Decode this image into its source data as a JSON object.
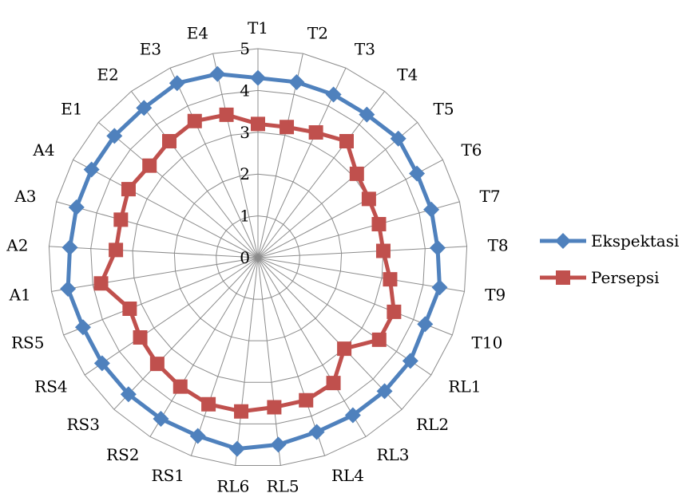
{
  "chart_data": {
    "type": "radar",
    "categories": [
      "T1",
      "T2",
      "T3",
      "T4",
      "T5",
      "T6",
      "T7",
      "T8",
      "T9",
      "T10",
      "RL1",
      "RL2",
      "RL3",
      "RL4",
      "RL5",
      "RL6",
      "RS1",
      "RS2",
      "RS3",
      "RS4",
      "RS5",
      "A1",
      "A2",
      "A3",
      "A4",
      "E1",
      "E2",
      "E3",
      "E4"
    ],
    "ylim": [
      0,
      5
    ],
    "ticks": [
      0,
      1,
      2,
      3,
      4,
      5
    ],
    "grid": true,
    "legend_position": "right",
    "series": [
      {
        "name": "Ekspektasi",
        "color": "#4F81BD",
        "marker": "diamond",
        "values": [
          4.3,
          4.3,
          4.3,
          4.3,
          4.4,
          4.3,
          4.3,
          4.3,
          4.4,
          4.3,
          4.4,
          4.4,
          4.4,
          4.4,
          4.5,
          4.6,
          4.5,
          4.5,
          4.5,
          4.5,
          4.5,
          4.6,
          4.5,
          4.5,
          4.5,
          4.5,
          4.5,
          4.6,
          4.5
        ]
      },
      {
        "name": "Persepsi",
        "color": "#C0504D",
        "marker": "square",
        "values": [
          3.2,
          3.2,
          3.3,
          3.5,
          3.1,
          3.0,
          3.0,
          3.0,
          3.2,
          3.5,
          3.5,
          3.0,
          3.5,
          3.6,
          3.6,
          3.7,
          3.7,
          3.6,
          3.5,
          3.4,
          3.3,
          3.8,
          3.4,
          3.4,
          3.5,
          3.4,
          3.5,
          3.6,
          3.5
        ]
      }
    ]
  }
}
